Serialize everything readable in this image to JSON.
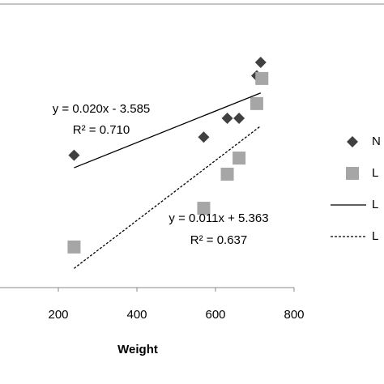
{
  "chart_data": {
    "type": "scatter",
    "x_label": "Weight",
    "xlim": [
      0,
      800
    ],
    "xticks": [
      200,
      400,
      600,
      800
    ],
    "ylim": [
      -14,
      22
    ],
    "y2lim": [
      7.3,
      17.7
    ],
    "series": [
      {
        "name": "N",
        "kind": "points",
        "marker": "diamond",
        "color": "#404040",
        "x": [
          240,
          570,
          630,
          660,
          705,
          715
        ],
        "values": [
          2.8,
          5.1,
          7.5,
          7.5,
          12.9,
          14.6
        ]
      },
      {
        "name": "L",
        "kind": "points",
        "marker": "square",
        "color": "#a6a6a6",
        "axis": "y2",
        "x": [
          240,
          570,
          630,
          660,
          705,
          718
        ],
        "values": [
          8.79,
          10.21,
          11.46,
          12.05,
          14.05,
          14.97
        ]
      },
      {
        "name": "L",
        "kind": "line",
        "dash": "solid",
        "color": "#000000",
        "x": [
          240,
          715
        ],
        "values": [
          1.215,
          10.715
        ]
      },
      {
        "name": "L",
        "kind": "line",
        "dash": "dashed",
        "color": "#000000",
        "axis": "y2",
        "x": [
          240,
          715
        ],
        "values": [
          8.003,
          13.228
        ]
      }
    ],
    "annotations": [
      "y = 0.020x - 3.585",
      "R² = 0.710",
      "y = 0.011x + 5.363",
      "R² = 0.637"
    ]
  }
}
